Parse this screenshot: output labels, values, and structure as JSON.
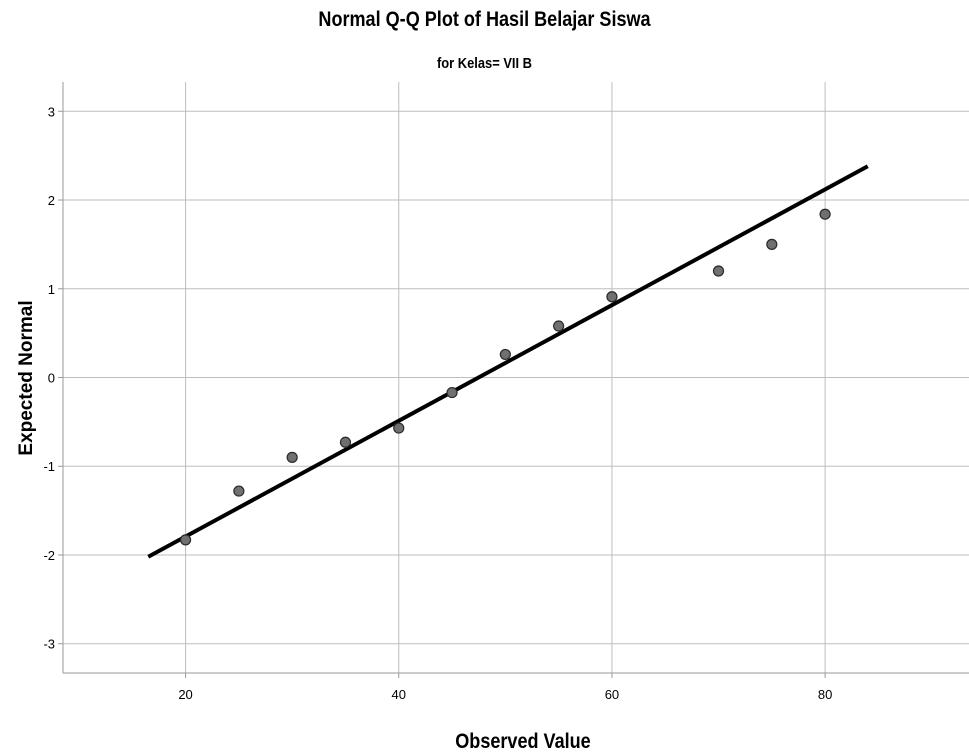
{
  "chart_data": {
    "type": "scatter",
    "title": "Normal Q-Q Plot of Hasil Belajar Siswa",
    "subtitle": "for Kelas= VII B",
    "xlabel": "Observed Value",
    "ylabel": "Expected Normal",
    "xlim": [
      8.5,
      93.5
    ],
    "ylim": [
      -3.33,
      3.33
    ],
    "x_ticks": [
      20,
      40,
      60,
      80
    ],
    "y_ticks": [
      3,
      2,
      1,
      0,
      -1,
      -2,
      -3
    ],
    "x_tick_labels": [
      "20",
      "40",
      "60",
      "80"
    ],
    "y_tick_labels": [
      "3",
      "2",
      "1",
      "0",
      "-1",
      "-2",
      "-3"
    ],
    "grid": true,
    "legend": "none",
    "points": {
      "x": [
        20,
        25,
        30,
        35,
        40,
        45,
        50,
        55,
        60,
        70,
        75,
        80
      ],
      "y": [
        -1.83,
        -1.28,
        -0.9,
        -0.73,
        -0.57,
        -0.17,
        0.26,
        0.58,
        0.91,
        1.2,
        1.5,
        1.84
      ]
    },
    "reference_line": {
      "x": [
        16.5,
        84
      ],
      "y": [
        -2.02,
        2.38
      ]
    },
    "colors": {
      "point_fill": "#707070",
      "point_stroke": "#2a2a2a",
      "line": "#000000",
      "grid": "#bdbdbd",
      "axis": "#9a9a9a"
    }
  }
}
